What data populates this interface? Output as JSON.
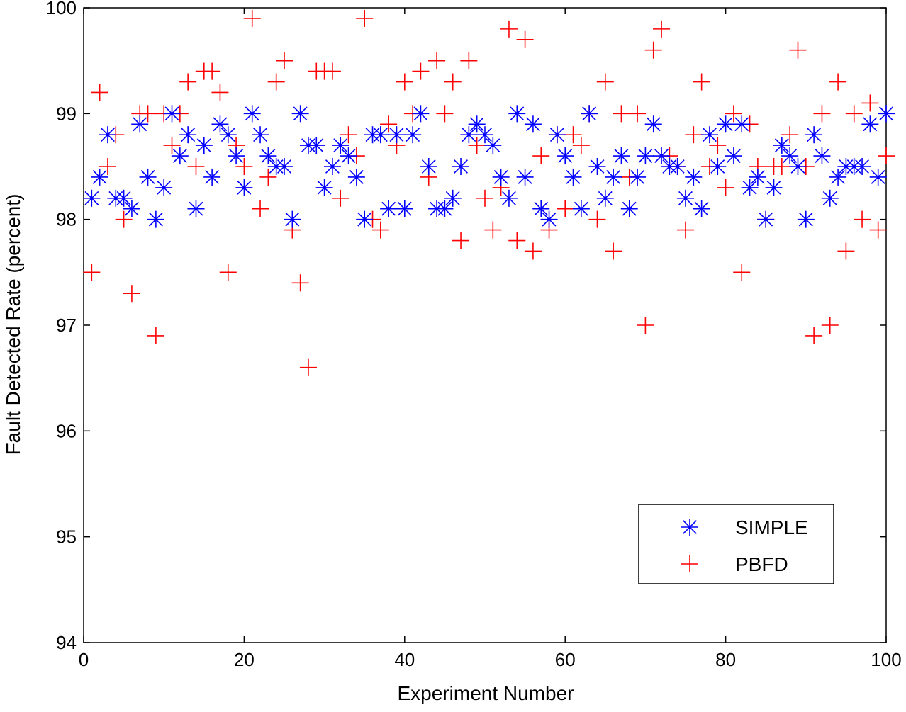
{
  "chart_data": {
    "type": "scatter",
    "title": "",
    "xlabel": "Experiment Number",
    "ylabel": "Fault Detected Rate (percent)",
    "xlim": [
      0,
      100
    ],
    "ylim": [
      94,
      100
    ],
    "xticks": [
      0,
      20,
      40,
      60,
      80,
      100
    ],
    "yticks": [
      94,
      95,
      96,
      97,
      98,
      99,
      100
    ],
    "grid": false,
    "legend_position": "bottom-right",
    "series": [
      {
        "name": "SIMPLE",
        "marker": "asterisk",
        "color": "#0000ff",
        "x": [
          1,
          2,
          3,
          4,
          5,
          6,
          7,
          8,
          9,
          10,
          11,
          12,
          13,
          14,
          15,
          16,
          17,
          18,
          19,
          20,
          21,
          22,
          23,
          24,
          25,
          26,
          27,
          28,
          29,
          30,
          31,
          32,
          33,
          34,
          35,
          36,
          37,
          38,
          39,
          40,
          41,
          42,
          43,
          44,
          45,
          46,
          47,
          48,
          49,
          50,
          51,
          52,
          53,
          54,
          55,
          56,
          57,
          58,
          59,
          60,
          61,
          62,
          63,
          64,
          65,
          66,
          67,
          68,
          69,
          70,
          71,
          72,
          73,
          74,
          75,
          76,
          77,
          78,
          79,
          80,
          81,
          82,
          83,
          84,
          85,
          86,
          87,
          88,
          89,
          90,
          91,
          92,
          93,
          94,
          95,
          96,
          97,
          98,
          99,
          100
        ],
        "y": [
          98.2,
          98.4,
          98.8,
          98.2,
          98.2,
          98.1,
          98.9,
          98.4,
          98.0,
          98.3,
          99.0,
          98.6,
          98.8,
          98.1,
          98.7,
          98.4,
          98.9,
          98.8,
          98.6,
          98.3,
          99.0,
          98.8,
          98.6,
          98.5,
          98.5,
          98.0,
          99.0,
          98.7,
          98.7,
          98.3,
          98.5,
          98.7,
          98.6,
          98.4,
          98.0,
          98.8,
          98.8,
          98.1,
          98.8,
          98.1,
          98.8,
          99.0,
          98.5,
          98.1,
          98.1,
          98.2,
          98.5,
          98.8,
          98.9,
          98.8,
          98.7,
          98.4,
          98.2,
          99.0,
          98.4,
          98.9,
          98.1,
          98.0,
          98.8,
          98.6,
          98.4,
          98.1,
          99.0,
          98.5,
          98.2,
          98.4,
          98.6,
          98.1,
          98.4,
          98.6,
          98.9,
          98.6,
          98.5,
          98.5,
          98.2,
          98.4,
          98.1,
          98.8,
          98.5,
          98.9,
          98.6,
          98.9,
          98.3,
          98.4,
          98.0,
          98.3,
          98.7,
          98.6,
          98.5,
          98.0,
          98.8,
          98.6,
          98.2,
          98.4,
          98.5,
          98.5,
          98.5,
          98.9,
          98.4,
          99.0
        ]
      },
      {
        "name": "PBFD",
        "marker": "plus",
        "color": "#ff0000",
        "x": [
          1,
          2,
          3,
          4,
          5,
          6,
          7,
          8,
          9,
          10,
          11,
          12,
          13,
          14,
          15,
          16,
          17,
          18,
          19,
          20,
          21,
          22,
          23,
          24,
          25,
          26,
          27,
          28,
          29,
          30,
          31,
          32,
          33,
          34,
          35,
          36,
          37,
          38,
          39,
          40,
          41,
          42,
          43,
          44,
          45,
          46,
          47,
          48,
          49,
          50,
          51,
          52,
          53,
          54,
          55,
          56,
          57,
          58,
          59,
          60,
          61,
          62,
          63,
          64,
          65,
          66,
          67,
          68,
          69,
          70,
          71,
          72,
          73,
          74,
          75,
          76,
          77,
          78,
          79,
          80,
          81,
          82,
          83,
          84,
          85,
          86,
          87,
          88,
          89,
          90,
          91,
          92,
          93,
          94,
          95,
          96,
          97,
          98,
          99,
          100
        ],
        "y": [
          97.5,
          99.2,
          98.5,
          98.8,
          98.0,
          97.3,
          99.0,
          99.0,
          96.9,
          99.0,
          98.7,
          99.0,
          99.3,
          98.5,
          99.4,
          99.4,
          99.2,
          97.5,
          98.7,
          98.5,
          99.9,
          98.1,
          98.4,
          99.3,
          99.5,
          97.9,
          97.4,
          96.6,
          99.4,
          99.4,
          99.4,
          98.2,
          98.8,
          98.6,
          99.9,
          98.0,
          97.9,
          98.9,
          98.7,
          99.3,
          99.0,
          99.4,
          98.4,
          99.5,
          99.0,
          99.3,
          97.8,
          99.5,
          98.7,
          98.2,
          97.9,
          98.3,
          99.8,
          97.8,
          99.7,
          97.7,
          98.6,
          97.9,
          98.8,
          98.1,
          98.8,
          98.7,
          99.0,
          98.0,
          99.3,
          97.7,
          99.0,
          98.4,
          99.0,
          97.0,
          99.6,
          99.8,
          98.6,
          98.5,
          97.9,
          98.8,
          99.3,
          98.5,
          98.7,
          98.3,
          99.0,
          97.5,
          98.9,
          98.5,
          98.0,
          98.5,
          98.5,
          98.8,
          99.6,
          98.5,
          96.9,
          99.0,
          97.0,
          99.3,
          97.7,
          99.0,
          98.0,
          99.1,
          97.9,
          98.6
        ]
      }
    ]
  }
}
